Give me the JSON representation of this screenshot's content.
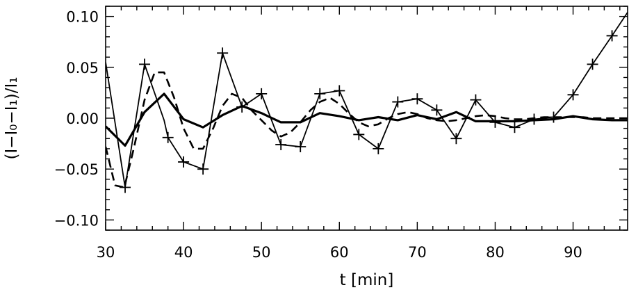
{
  "chart_data": {
    "type": "line",
    "xlabel": "t [min]",
    "ylabel": "(I−I₀−I₁)/I₁",
    "xlim": [
      30,
      97
    ],
    "ylim": [
      -0.11,
      0.11
    ],
    "x_ticks": [
      30,
      40,
      50,
      60,
      70,
      80,
      90
    ],
    "y_ticks": [
      0.1,
      0.05,
      0.0,
      -0.05,
      -0.1
    ],
    "x_tick_labels": [
      "30",
      "40",
      "50",
      "60",
      "70",
      "80",
      "90"
    ],
    "y_tick_labels": [
      "0.10",
      "0.05",
      "0.00",
      "−0.05",
      "−0.10"
    ],
    "grid": false,
    "series": [
      {
        "style": "solid-with-plus-markers",
        "x": [
          30.0,
          32.5,
          35.0,
          37.5,
          38.0,
          40.0,
          42.5,
          45.0,
          47.5,
          50.0,
          52.5,
          55.0,
          57.5,
          60.0,
          62.5,
          65.0,
          67.5,
          70.0,
          72.5,
          75.0,
          77.5,
          80.0,
          82.5,
          85.0,
          87.5,
          90.0,
          92.5,
          95.0,
          97.0
        ],
        "y": [
          0.055,
          -0.068,
          0.053,
          -0.002,
          -0.019,
          -0.043,
          -0.05,
          0.064,
          0.011,
          0.024,
          -0.026,
          -0.028,
          0.024,
          0.027,
          -0.016,
          -0.03,
          0.016,
          0.019,
          0.008,
          -0.02,
          0.018,
          -0.004,
          -0.009,
          -0.001,
          0.001,
          0.023,
          0.053,
          0.081,
          0.104
        ]
      },
      {
        "style": "dashed",
        "x": [
          30.0,
          31.2,
          32.4,
          33.6,
          35.0,
          36.3,
          37.5,
          38.8,
          40.0,
          41.3,
          42.5,
          43.8,
          45.0,
          46.2,
          47.5,
          48.7,
          50.0,
          51.3,
          52.5,
          53.7,
          55.0,
          56.3,
          57.5,
          58.8,
          60.0,
          61.3,
          62.5,
          63.7,
          65.0,
          66.3,
          67.5,
          68.8,
          70.0,
          71.3,
          72.5,
          73.8,
          75.0,
          76.3,
          77.5,
          78.8,
          80.0,
          81.3,
          82.5,
          83.8,
          85.0,
          86.3,
          87.5,
          88.8,
          90.0,
          91.3,
          92.5,
          93.8,
          95.0,
          96.3,
          97.0
        ],
        "y": [
          -0.028,
          -0.066,
          -0.068,
          -0.03,
          0.018,
          0.045,
          0.045,
          0.02,
          -0.01,
          -0.03,
          -0.03,
          -0.01,
          0.012,
          0.024,
          0.02,
          0.008,
          -0.002,
          -0.012,
          -0.018,
          -0.014,
          -0.004,
          0.008,
          0.016,
          0.02,
          0.014,
          0.004,
          -0.004,
          -0.008,
          -0.006,
          0.0,
          0.004,
          0.006,
          0.004,
          0.0,
          -0.002,
          -0.003,
          -0.002,
          0.0,
          0.002,
          0.003,
          0.002,
          0.0,
          -0.001,
          -0.001,
          0.0,
          0.001,
          0.001,
          0.001,
          0.001,
          0.001,
          0.0,
          0.0,
          0.0,
          0.0,
          0.0
        ]
      },
      {
        "style": "solid-thick",
        "x": [
          30.0,
          32.5,
          35.0,
          37.5,
          40.0,
          42.5,
          45.0,
          47.5,
          50.0,
          52.5,
          55.0,
          57.5,
          60.0,
          62.5,
          65.0,
          67.5,
          70.0,
          72.5,
          75.0,
          77.5,
          80.0,
          82.5,
          85.0,
          87.5,
          90.0,
          92.5,
          95.0,
          97.0
        ],
        "y": [
          -0.008,
          -0.027,
          0.006,
          0.024,
          -0.001,
          -0.009,
          0.003,
          0.012,
          0.005,
          -0.004,
          -0.004,
          0.005,
          0.002,
          -0.002,
          0.001,
          -0.002,
          0.003,
          -0.001,
          0.006,
          -0.003,
          -0.003,
          -0.003,
          -0.002,
          -0.001,
          0.002,
          -0.001,
          -0.002,
          -0.002
        ]
      }
    ]
  }
}
